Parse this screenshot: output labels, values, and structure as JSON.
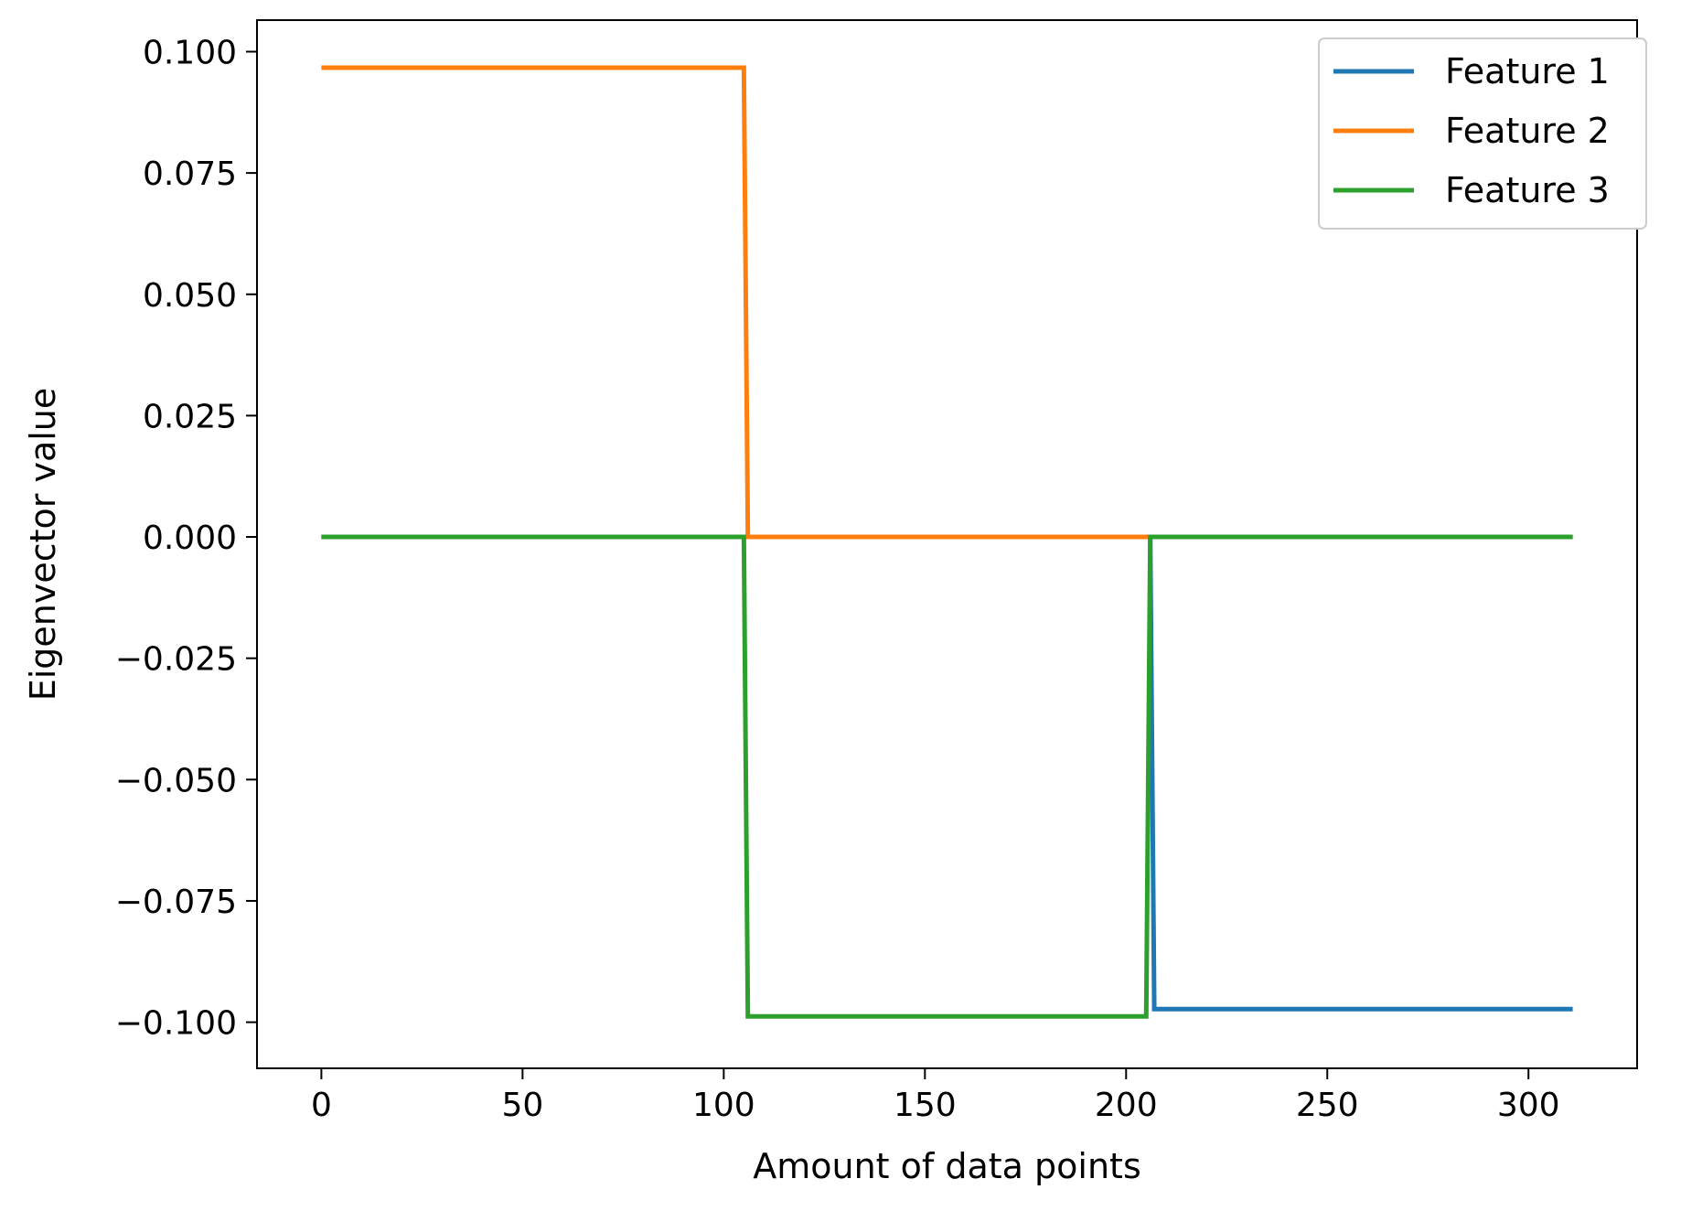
{
  "chart_data": {
    "type": "line",
    "title": "",
    "xlabel": "Amount of data points",
    "ylabel": "Eigenvector value",
    "xlim": [
      -16,
      327
    ],
    "ylim": [
      -0.1095,
      0.1065
    ],
    "xticks": [
      0,
      50,
      100,
      150,
      200,
      250,
      300
    ],
    "xtick_labels": [
      "0",
      "50",
      "100",
      "150",
      "200",
      "250",
      "300"
    ],
    "yticks": [
      0.1,
      0.075,
      0.05,
      0.025,
      0.0,
      -0.025,
      -0.05,
      -0.075,
      -0.1
    ],
    "ytick_labels": [
      "0.100",
      "0.075",
      "0.050",
      "0.025",
      "0.000",
      "−0.025",
      "−0.050",
      "−0.075",
      "−0.100"
    ],
    "grid": false,
    "legend_position": "top-right",
    "series": [
      {
        "name": "Feature 1",
        "color": "#1f77b4",
        "x": [
          0,
          206,
          207,
          311
        ],
        "y": [
          0.0,
          0.0,
          -0.0973,
          -0.0973
        ]
      },
      {
        "name": "Feature 2",
        "color": "#ff7f0e",
        "x": [
          0,
          105,
          106,
          311
        ],
        "y": [
          0.0967,
          0.0967,
          0.0,
          0.0
        ]
      },
      {
        "name": "Feature 3",
        "color": "#2ca02c",
        "x": [
          0,
          105,
          106,
          205,
          206,
          311
        ],
        "y": [
          0.0,
          0.0,
          -0.0988,
          -0.0988,
          0.0,
          0.0
        ]
      }
    ]
  }
}
